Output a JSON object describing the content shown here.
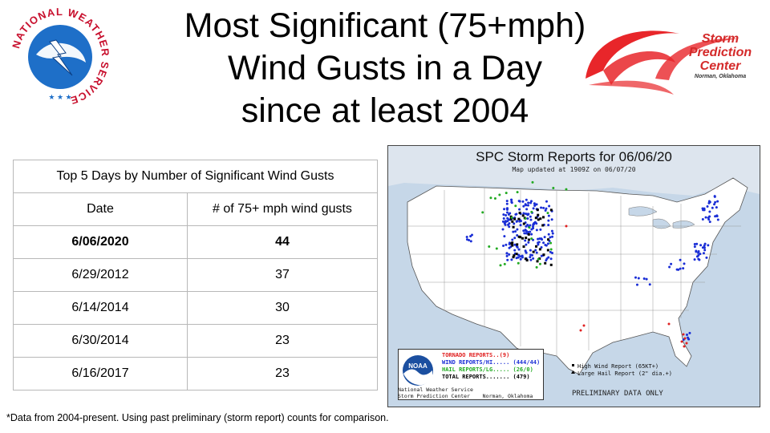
{
  "title": {
    "line1": "Most Significant (75+mph)",
    "line2": "Wind Gusts in a Day",
    "line3": "since at least 2004"
  },
  "nws_logo": {
    "text": "NATIONAL WEATHER SERVICE",
    "icon": "nws-lightning-logo"
  },
  "spc_logo": {
    "line1": "Storm",
    "line2": "Prediction",
    "line3": "Center",
    "line4": "Norman, Oklahoma",
    "icon": "spc-swoosh-logo"
  },
  "table": {
    "caption": "Top 5 Days by Number of Significant Wind Gusts",
    "headers": [
      "Date",
      "# of 75+ mph wind gusts"
    ],
    "rows": [
      [
        "6/06/2020",
        "44"
      ],
      [
        "6/29/2012",
        "37"
      ],
      [
        "6/14/2014",
        "30"
      ],
      [
        "6/30/2014",
        "23"
      ],
      [
        "6/16/2017",
        "23"
      ]
    ]
  },
  "footnote": "*Data from 2004-present. Using past preliminary (storm report) counts for comparison.",
  "map": {
    "title": "SPC Storm Reports for 06/06/20",
    "subtitle": "Map updated at 1909Z on 06/07/20",
    "legend": {
      "tornado": "TORNADO REPORTS..(9)",
      "wind": "WIND REPORTS/HI..... (444/44)",
      "hail": "HAIL REPORTS/LG..... (26/0)",
      "total": "TOTAL REPORTS....... (479)"
    },
    "credit_line1": "National Weather Service",
    "credit_line2": "Storm Prediction Center",
    "credit_line3": "Norman, Oklahoma",
    "key_high_wind": "High Wind Report (65KT+)",
    "key_large_hail": "Large Hail Report (2\" dia.+)",
    "prelim": "PRELIMINARY DATA ONLY",
    "colors": {
      "tornado": "#e02020",
      "wind": "#1a2ed6",
      "hail": "#22aa22",
      "land": "#ffffff",
      "water": "#c6d7e8"
    }
  }
}
